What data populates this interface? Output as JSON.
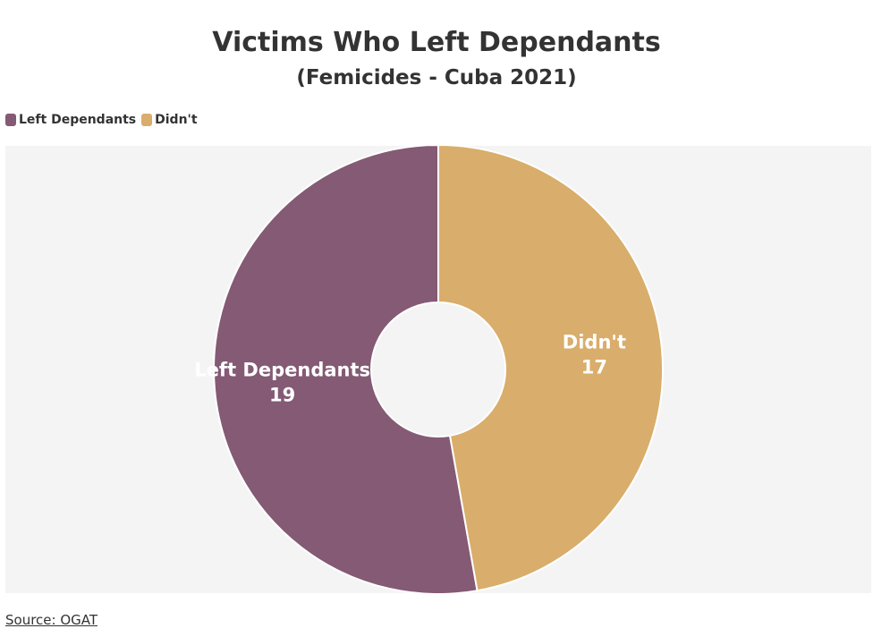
{
  "chart_data": {
    "type": "pie",
    "title": "Victims Who Left Dependants",
    "subtitle": "(Femicides - Cuba 2021)",
    "donut": true,
    "legend_position": "top-left",
    "slices": [
      {
        "label": "Left Dependants",
        "value": 19,
        "color": "#845a74"
      },
      {
        "label": "Didn't",
        "value": 17,
        "color": "#d9ad6b"
      }
    ],
    "source": "Source: OGAT"
  },
  "colors": {
    "background": "#f4f4f4",
    "slice_border": "#ffffff",
    "label_text": "#ffffff"
  }
}
